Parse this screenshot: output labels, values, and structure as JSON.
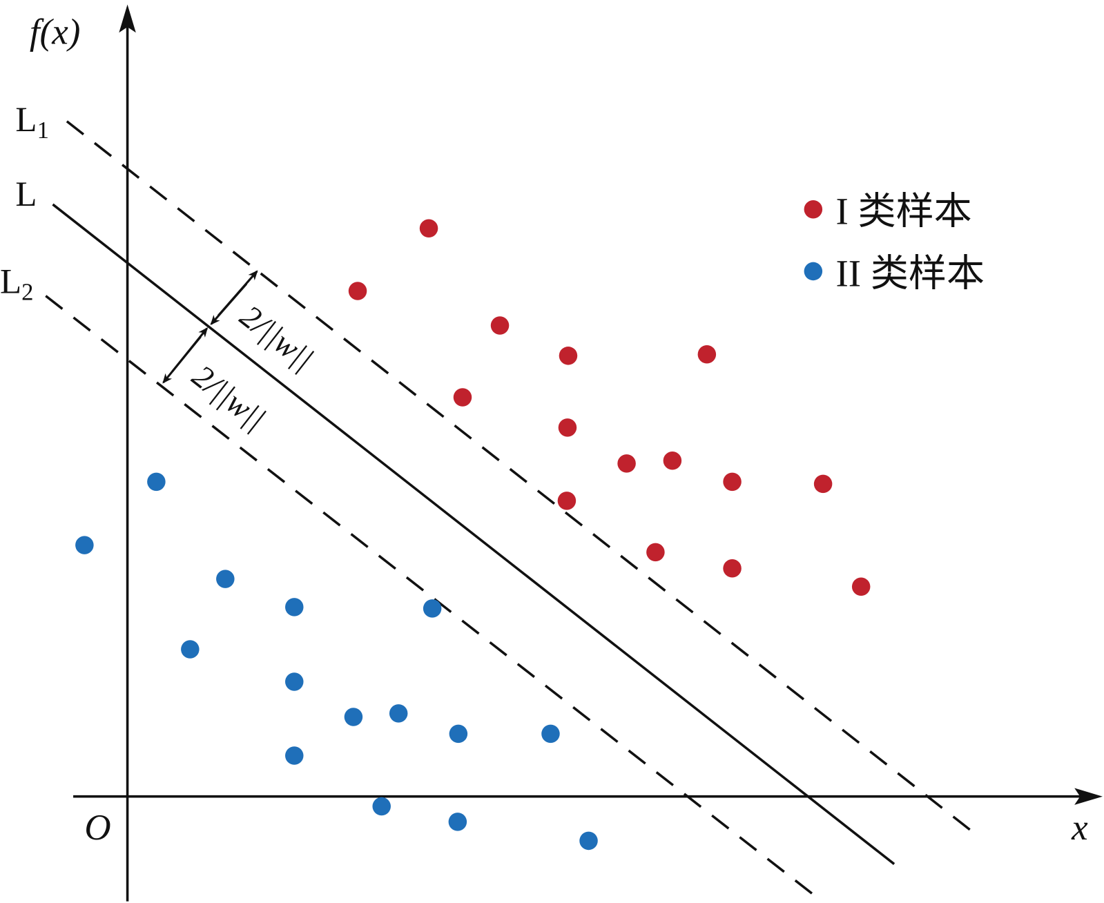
{
  "axes": {
    "y_label": "f(x)",
    "x_label": "x",
    "origin": "O"
  },
  "lines": [
    {
      "main": "L",
      "sub": "1"
    },
    {
      "main": "L"
    },
    {
      "main": "L",
      "sub": "2"
    }
  ],
  "margins": [
    "2/||w||",
    "2/||w||"
  ],
  "legend": [
    "I 类样本",
    "II 类样本"
  ]
}
